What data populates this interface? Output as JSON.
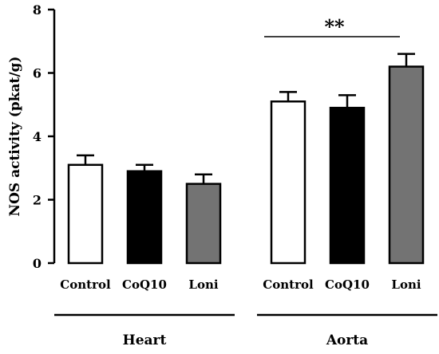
{
  "chart_data": {
    "type": "bar",
    "title": "",
    "ylabel": "NOS activity (pkat/g)",
    "xlabel": "",
    "ylim": [
      0,
      8
    ],
    "yticks": [
      "0",
      "2",
      "4",
      "6",
      "8"
    ],
    "grid": false,
    "groups": [
      {
        "name": "Heart",
        "categories": [
          "Control",
          "CoQ10",
          "Loni"
        ],
        "values": [
          3.1,
          2.9,
          2.5
        ],
        "errors": [
          0.3,
          0.2,
          0.3
        ]
      },
      {
        "name": "Aorta",
        "categories": [
          "Control",
          "CoQ10",
          "Loni"
        ],
        "values": [
          5.1,
          4.9,
          6.2
        ],
        "errors": [
          0.3,
          0.4,
          0.4
        ]
      }
    ],
    "bar_fill_colors": [
      "#ffffff",
      "#000000",
      "#737373"
    ],
    "bar_stroke_color": "#000000",
    "significance": {
      "group": "Aorta",
      "from_category": "Control",
      "to_category": "Loni",
      "label": "**"
    }
  }
}
